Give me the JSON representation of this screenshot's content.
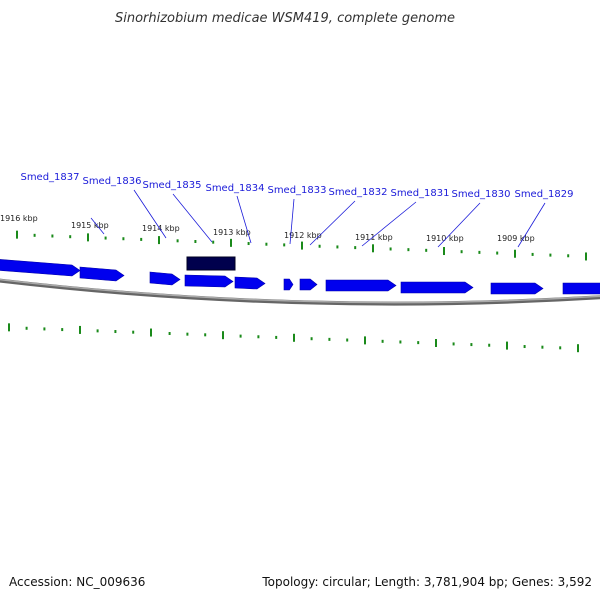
{
  "title": "Sinorhizobium medicae WSM419, complete genome",
  "accession_text": "Accession: NC_009636",
  "summary_text": "Topology: circular; Length: 3,781,904 bp; Genes: 3,592",
  "colors": {
    "gene": "#0000ee",
    "gene_selected": "#00004d",
    "tick": "#1a8a1a",
    "backbone": "#888888",
    "label": "#1b1bd9"
  },
  "ticks": [
    "1916 kbp",
    "1915 kbp",
    "1914 kbp",
    "1913 kbp",
    "1912 kbp",
    "1911 kbp",
    "1910 kbp",
    "1909 kbp"
  ],
  "genes": [
    {
      "label": "Smed_1837",
      "strand": "forward"
    },
    {
      "label": "Smed_1836",
      "strand": "forward"
    },
    {
      "label": "Smed_1835",
      "strand": "forward",
      "selected": true
    },
    {
      "label": "Smed_1834",
      "strand": "forward"
    },
    {
      "label": "Smed_1833",
      "strand": "forward"
    },
    {
      "label": "Smed_1832",
      "strand": "forward"
    },
    {
      "label": "Smed_1831",
      "strand": "forward"
    },
    {
      "label": "Smed_1830",
      "strand": "forward"
    },
    {
      "label": "Smed_1829",
      "strand": "forward"
    }
  ]
}
